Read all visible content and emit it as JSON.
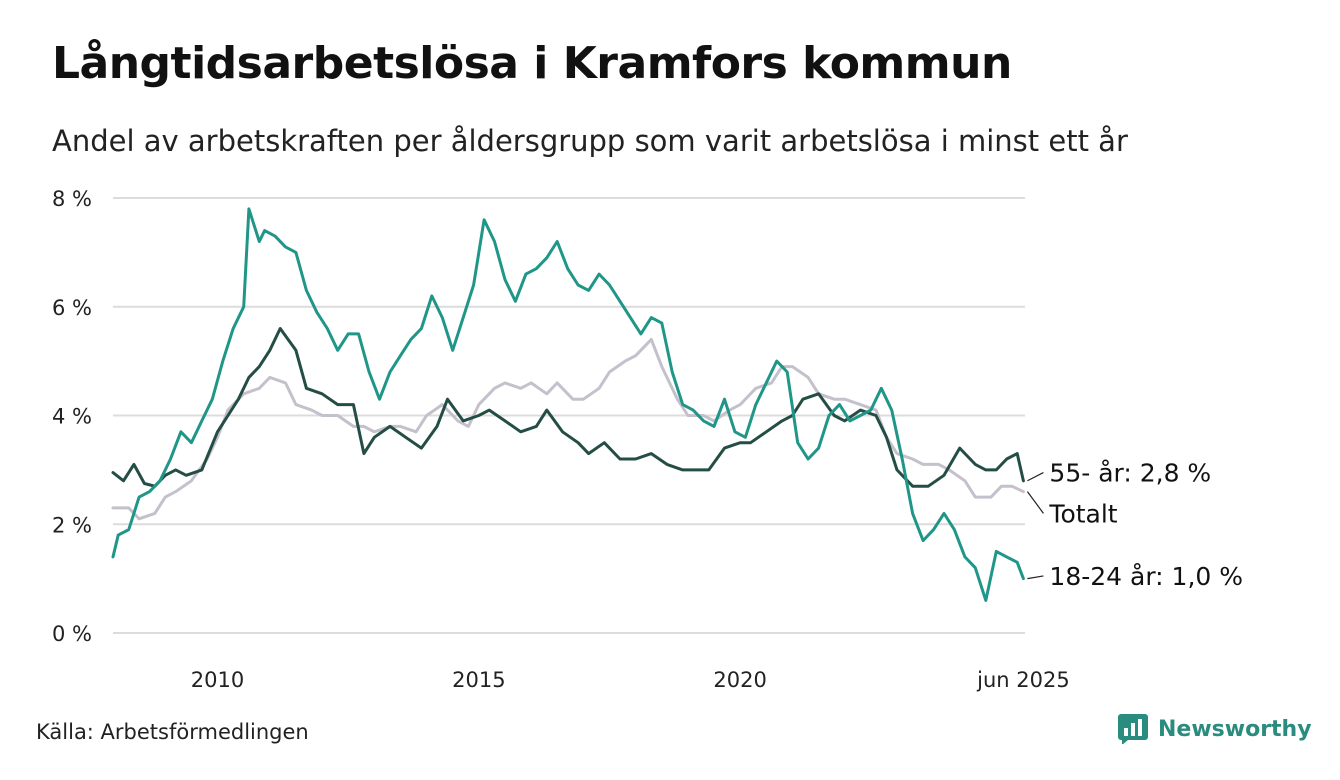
{
  "title": "Långtidsarbetslösa i Kramfors kommun",
  "subtitle": "Andel av arbetskraften per åldersgrupp som varit arbetslösa i minst ett år",
  "source": "Källa: Arbetsförmedlingen",
  "brand": {
    "name": "Newsworthy",
    "icon": "newsworthy-logo-icon",
    "color": "#2a8c7e"
  },
  "chart_data": {
    "type": "line",
    "ylim": [
      0,
      8
    ],
    "y_ticks": [
      0,
      2,
      4,
      6,
      8
    ],
    "y_tick_labels": [
      "0 %",
      "2 %",
      "4 %",
      "6 %",
      "8 %"
    ],
    "xlim": [
      2008.0,
      2025.45
    ],
    "x_ticks": [
      2010,
      2015,
      2020,
      2025.42
    ],
    "x_tick_labels": [
      "2010",
      "2015",
      "2020",
      "jun 2025"
    ],
    "grid": true,
    "series": [
      {
        "name": "Totalt",
        "label": "Totalt",
        "color": "#c4c0cc",
        "x": [
          2008.0,
          2008.3,
          2008.5,
          2008.8,
          2009.0,
          2009.2,
          2009.5,
          2009.8,
          2010.0,
          2010.2,
          2010.5,
          2010.8,
          2011.0,
          2011.3,
          2011.5,
          2011.8,
          2012.0,
          2012.3,
          2012.6,
          2012.8,
          2013.0,
          2013.3,
          2013.5,
          2013.8,
          2014.0,
          2014.3,
          2014.6,
          2014.8,
          2015.0,
          2015.3,
          2015.5,
          2015.8,
          2016.0,
          2016.3,
          2016.5,
          2016.8,
          2017.0,
          2017.3,
          2017.5,
          2017.8,
          2018.0,
          2018.3,
          2018.5,
          2018.8,
          2019.0,
          2019.3,
          2019.5,
          2019.8,
          2020.0,
          2020.3,
          2020.6,
          2020.8,
          2021.0,
          2021.3,
          2021.5,
          2021.8,
          2022.0,
          2022.3,
          2022.6,
          2022.8,
          2023.0,
          2023.3,
          2023.5,
          2023.8,
          2024.0,
          2024.3,
          2024.5,
          2024.8,
          2025.0,
          2025.2,
          2025.42
        ],
        "y": [
          2.3,
          2.3,
          2.1,
          2.2,
          2.5,
          2.6,
          2.8,
          3.2,
          3.6,
          4.1,
          4.4,
          4.5,
          4.7,
          4.6,
          4.2,
          4.1,
          4.0,
          4.0,
          3.8,
          3.8,
          3.7,
          3.8,
          3.8,
          3.7,
          4.0,
          4.2,
          3.9,
          3.8,
          4.2,
          4.5,
          4.6,
          4.5,
          4.6,
          4.4,
          4.6,
          4.3,
          4.3,
          4.5,
          4.8,
          5.0,
          5.1,
          5.4,
          4.9,
          4.3,
          4.0,
          4.0,
          3.9,
          4.1,
          4.2,
          4.5,
          4.6,
          4.9,
          4.9,
          4.7,
          4.4,
          4.3,
          4.3,
          4.2,
          4.1,
          3.6,
          3.3,
          3.2,
          3.1,
          3.1,
          3.0,
          2.8,
          2.5,
          2.5,
          2.7,
          2.7,
          2.6
        ]
      },
      {
        "name": "55- år",
        "label": "55- år: 2,8 %",
        "color": "#244e45",
        "x": [
          2008.0,
          2008.2,
          2008.4,
          2008.6,
          2008.8,
          2009.0,
          2009.2,
          2009.4,
          2009.7,
          2010.0,
          2010.2,
          2010.4,
          2010.6,
          2010.8,
          2011.0,
          2011.2,
          2011.5,
          2011.7,
          2012.0,
          2012.3,
          2012.6,
          2012.8,
          2013.0,
          2013.3,
          2013.6,
          2013.9,
          2014.2,
          2014.4,
          2014.7,
          2015.0,
          2015.2,
          2015.5,
          2015.8,
          2016.1,
          2016.3,
          2016.6,
          2016.9,
          2017.1,
          2017.4,
          2017.7,
          2018.0,
          2018.3,
          2018.6,
          2018.9,
          2019.1,
          2019.4,
          2019.7,
          2020.0,
          2020.2,
          2020.5,
          2020.8,
          2021.0,
          2021.2,
          2021.5,
          2021.8,
          2022.0,
          2022.3,
          2022.6,
          2022.8,
          2023.0,
          2023.3,
          2023.6,
          2023.9,
          2024.2,
          2024.5,
          2024.7,
          2024.9,
          2025.1,
          2025.3,
          2025.42
        ],
        "y": [
          2.95,
          2.8,
          3.1,
          2.75,
          2.7,
          2.9,
          3.0,
          2.9,
          3.0,
          3.7,
          4.0,
          4.3,
          4.7,
          4.9,
          5.2,
          5.6,
          5.2,
          4.5,
          4.4,
          4.2,
          4.2,
          3.3,
          3.6,
          3.8,
          3.6,
          3.4,
          3.8,
          4.3,
          3.9,
          4.0,
          4.1,
          3.9,
          3.7,
          3.8,
          4.1,
          3.7,
          3.5,
          3.3,
          3.5,
          3.2,
          3.2,
          3.3,
          3.1,
          3.0,
          3.0,
          3.0,
          3.4,
          3.5,
          3.5,
          3.7,
          3.9,
          4.0,
          4.3,
          4.4,
          4.0,
          3.9,
          4.1,
          4.0,
          3.6,
          3.0,
          2.7,
          2.7,
          2.9,
          3.4,
          3.1,
          3.0,
          3.0,
          3.2,
          3.3,
          2.8
        ]
      },
      {
        "name": "18-24 år",
        "label": "18-24 år: 1,0 %",
        "color": "#1f9688",
        "x": [
          2008.0,
          2008.1,
          2008.3,
          2008.5,
          2008.7,
          2008.9,
          2009.1,
          2009.3,
          2009.5,
          2009.7,
          2009.9,
          2010.1,
          2010.3,
          2010.5,
          2010.6,
          2010.8,
          2010.9,
          2011.1,
          2011.3,
          2011.5,
          2011.7,
          2011.9,
          2012.1,
          2012.3,
          2012.5,
          2012.7,
          2012.9,
          2013.1,
          2013.3,
          2013.5,
          2013.7,
          2013.9,
          2014.1,
          2014.3,
          2014.5,
          2014.7,
          2014.9,
          2015.1,
          2015.3,
          2015.5,
          2015.7,
          2015.9,
          2016.1,
          2016.3,
          2016.5,
          2016.7,
          2016.9,
          2017.1,
          2017.3,
          2017.5,
          2017.7,
          2017.9,
          2018.1,
          2018.3,
          2018.5,
          2018.7,
          2018.9,
          2019.1,
          2019.3,
          2019.5,
          2019.7,
          2019.9,
          2020.1,
          2020.3,
          2020.5,
          2020.7,
          2020.9,
          2021.1,
          2021.3,
          2021.5,
          2021.7,
          2021.9,
          2022.1,
          2022.3,
          2022.5,
          2022.7,
          2022.9,
          2023.1,
          2023.3,
          2023.5,
          2023.7,
          2023.9,
          2024.1,
          2024.3,
          2024.5,
          2024.7,
          2024.9,
          2025.1,
          2025.3,
          2025.42
        ],
        "y": [
          1.4,
          1.8,
          1.9,
          2.5,
          2.6,
          2.8,
          3.2,
          3.7,
          3.5,
          3.9,
          4.3,
          5.0,
          5.6,
          6.0,
          7.8,
          7.2,
          7.4,
          7.3,
          7.1,
          7.0,
          6.3,
          5.9,
          5.6,
          5.2,
          5.5,
          5.5,
          4.8,
          4.3,
          4.8,
          5.1,
          5.4,
          5.6,
          6.2,
          5.8,
          5.2,
          5.8,
          6.4,
          7.6,
          7.2,
          6.5,
          6.1,
          6.6,
          6.7,
          6.9,
          7.2,
          6.7,
          6.4,
          6.3,
          6.6,
          6.4,
          6.1,
          5.8,
          5.5,
          5.8,
          5.7,
          4.8,
          4.2,
          4.1,
          3.9,
          3.8,
          4.3,
          3.7,
          3.6,
          4.2,
          4.6,
          5.0,
          4.8,
          3.5,
          3.2,
          3.4,
          4.0,
          4.2,
          3.9,
          4.0,
          4.1,
          4.5,
          4.1,
          3.2,
          2.2,
          1.7,
          1.9,
          2.2,
          1.9,
          1.4,
          1.2,
          0.6,
          1.5,
          1.4,
          1.3,
          1.0
        ]
      }
    ],
    "end_labels": [
      {
        "series": "55- år",
        "text": "55- år: 2,8 %",
        "label_y": 2.95
      },
      {
        "series": "Totalt",
        "text": "Totalt",
        "label_y": 2.2
      },
      {
        "series": "18-24 år",
        "text": "18-24 år: 1,0 %",
        "label_y": 1.05
      }
    ],
    "grid_color": "#dcdcdc",
    "leader_color": "#222222"
  }
}
